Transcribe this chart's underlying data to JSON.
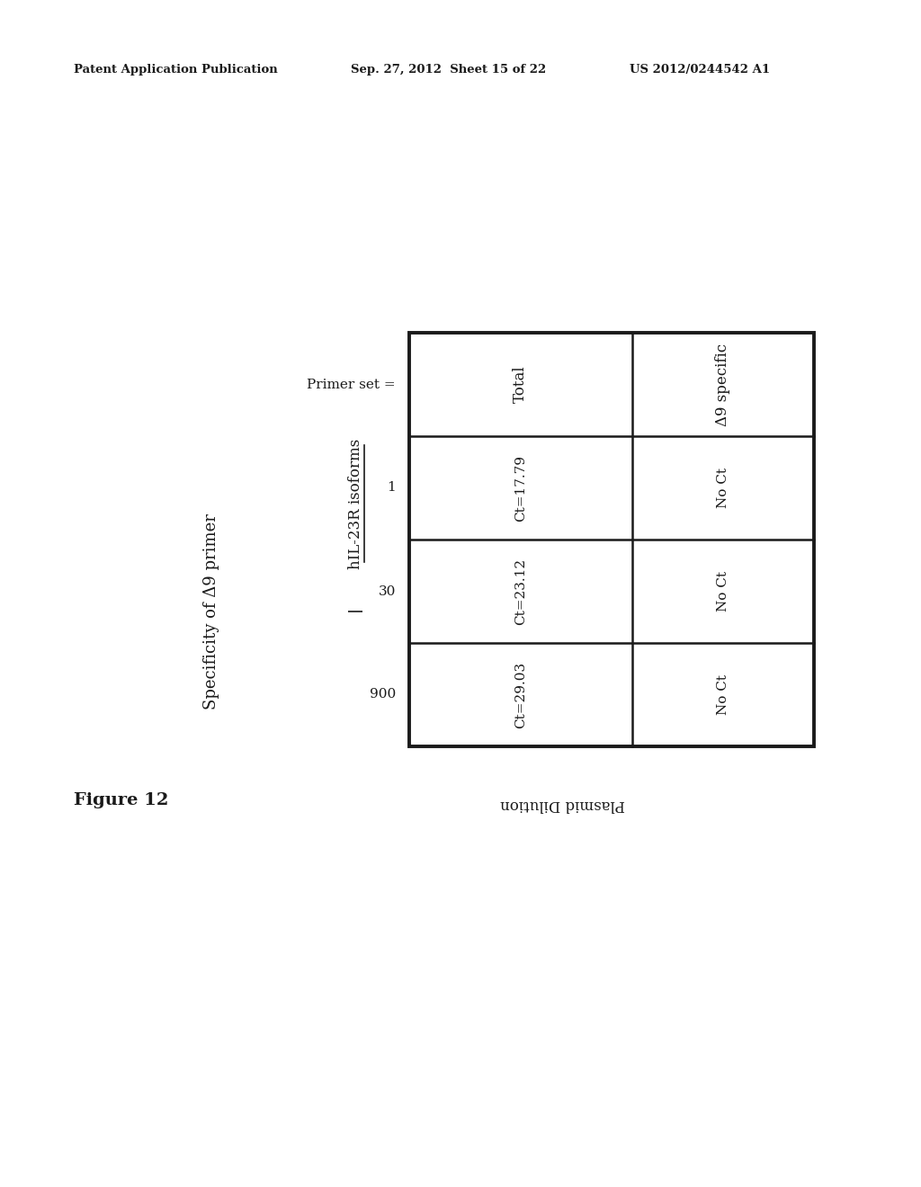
{
  "background_color": "#ffffff",
  "header_text_left": "Patent Application Publication",
  "header_text_mid": "Sep. 27, 2012  Sheet 15 of 22",
  "header_text_right": "US 2012/0244542 A1",
  "figure_label": "Figure 12",
  "title_text": "Specificity of Δ9 primer",
  "subtitle_text": "hIL-23R isoforms",
  "primer_set_label": "Primer set =",
  "primer_set_values": [
    "1",
    "30",
    "900"
  ],
  "plasmid_dilution_label": "Plasmid Dilution",
  "col_headers": [
    "Total",
    "Δ9 specific"
  ],
  "table_data": [
    [
      "Ct=17.79",
      "No Ct"
    ],
    [
      "Ct=23.12",
      "No Ct"
    ],
    [
      "Ct=29.03",
      "No Ct"
    ]
  ]
}
